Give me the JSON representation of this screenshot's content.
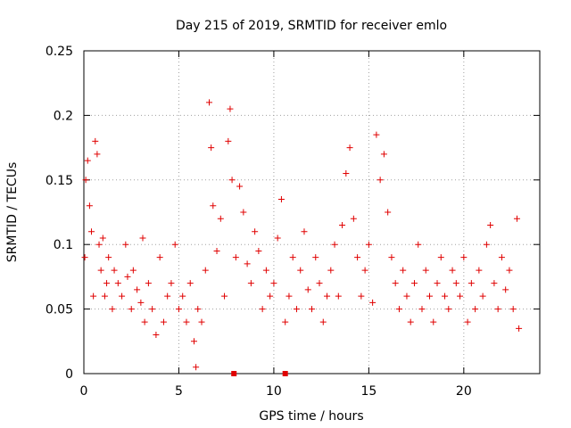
{
  "chart_data": {
    "type": "scatter",
    "title": "Day 215 of 2019, SRMTID for receiver emlo",
    "xlabel": "GPS time / hours",
    "ylabel": "SRMTID / TECUs",
    "xlim": [
      0,
      24
    ],
    "ylim": [
      0,
      0.25
    ],
    "xticks": [
      0,
      5,
      10,
      15,
      20
    ],
    "xtick_labels": [
      "0",
      "5",
      "10",
      "15",
      "20"
    ],
    "yticks": [
      0,
      0.05,
      0.1,
      0.15,
      0.2,
      0.25
    ],
    "ytick_labels": [
      "0",
      "0.05",
      "0.1",
      "0.15",
      "0.2",
      "0.25"
    ],
    "grid": true,
    "marker": "plus",
    "color": "#e00000",
    "series": [
      {
        "name": "SRMTID",
        "points": [
          [
            0.05,
            0.09
          ],
          [
            0.1,
            0.15
          ],
          [
            0.2,
            0.165
          ],
          [
            0.3,
            0.13
          ],
          [
            0.4,
            0.11
          ],
          [
            0.5,
            0.06
          ],
          [
            0.6,
            0.18
          ],
          [
            0.7,
            0.17
          ],
          [
            0.8,
            0.1
          ],
          [
            0.9,
            0.08
          ],
          [
            1.0,
            0.105
          ],
          [
            1.1,
            0.06
          ],
          [
            1.2,
            0.07
          ],
          [
            1.3,
            0.09
          ],
          [
            1.5,
            0.05
          ],
          [
            1.6,
            0.08
          ],
          [
            1.8,
            0.07
          ],
          [
            2.0,
            0.06
          ],
          [
            2.2,
            0.1
          ],
          [
            2.3,
            0.075
          ],
          [
            2.5,
            0.05
          ],
          [
            2.6,
            0.08
          ],
          [
            2.8,
            0.065
          ],
          [
            3.0,
            0.055
          ],
          [
            3.1,
            0.105
          ],
          [
            3.2,
            0.04
          ],
          [
            3.4,
            0.07
          ],
          [
            3.6,
            0.05
          ],
          [
            3.8,
            0.03
          ],
          [
            4.0,
            0.09
          ],
          [
            4.2,
            0.04
          ],
          [
            4.4,
            0.06
          ],
          [
            4.6,
            0.07
          ],
          [
            4.8,
            0.1
          ],
          [
            5.0,
            0.05
          ],
          [
            5.2,
            0.06
          ],
          [
            5.4,
            0.04
          ],
          [
            5.6,
            0.07
          ],
          [
            5.8,
            0.025
          ],
          [
            5.9,
            0.005
          ],
          [
            6.0,
            0.05
          ],
          [
            6.2,
            0.04
          ],
          [
            6.4,
            0.08
          ],
          [
            6.6,
            0.21
          ],
          [
            6.7,
            0.175
          ],
          [
            6.8,
            0.13
          ],
          [
            7.0,
            0.095
          ],
          [
            7.2,
            0.12
          ],
          [
            7.4,
            0.06
          ],
          [
            7.6,
            0.18
          ],
          [
            7.7,
            0.205
          ],
          [
            7.8,
            0.15
          ],
          [
            8.0,
            0.09
          ],
          [
            8.2,
            0.145
          ],
          [
            8.4,
            0.125
          ],
          [
            8.6,
            0.085
          ],
          [
            8.8,
            0.07
          ],
          [
            9.0,
            0.11
          ],
          [
            9.2,
            0.095
          ],
          [
            9.4,
            0.05
          ],
          [
            9.6,
            0.08
          ],
          [
            9.8,
            0.06
          ],
          [
            10.0,
            0.07
          ],
          [
            10.2,
            0.105
          ],
          [
            10.4,
            0.135
          ],
          [
            10.6,
            0.04
          ],
          [
            10.8,
            0.06
          ],
          [
            11.0,
            0.09
          ],
          [
            11.2,
            0.05
          ],
          [
            11.4,
            0.08
          ],
          [
            11.6,
            0.11
          ],
          [
            11.8,
            0.065
          ],
          [
            12.0,
            0.05
          ],
          [
            12.2,
            0.09
          ],
          [
            12.4,
            0.07
          ],
          [
            12.6,
            0.04
          ],
          [
            12.8,
            0.06
          ],
          [
            13.0,
            0.08
          ],
          [
            13.2,
            0.1
          ],
          [
            13.4,
            0.06
          ],
          [
            13.6,
            0.115
          ],
          [
            13.8,
            0.155
          ],
          [
            14.0,
            0.175
          ],
          [
            14.2,
            0.12
          ],
          [
            14.4,
            0.09
          ],
          [
            14.6,
            0.06
          ],
          [
            14.8,
            0.08
          ],
          [
            15.0,
            0.1
          ],
          [
            15.2,
            0.055
          ],
          [
            15.4,
            0.185
          ],
          [
            15.6,
            0.15
          ],
          [
            15.8,
            0.17
          ],
          [
            16.0,
            0.125
          ],
          [
            16.2,
            0.09
          ],
          [
            16.4,
            0.07
          ],
          [
            16.6,
            0.05
          ],
          [
            16.8,
            0.08
          ],
          [
            17.0,
            0.06
          ],
          [
            17.2,
            0.04
          ],
          [
            17.4,
            0.07
          ],
          [
            17.6,
            0.1
          ],
          [
            17.8,
            0.05
          ],
          [
            18.0,
            0.08
          ],
          [
            18.2,
            0.06
          ],
          [
            18.4,
            0.04
          ],
          [
            18.6,
            0.07
          ],
          [
            18.8,
            0.09
          ],
          [
            19.0,
            0.06
          ],
          [
            19.2,
            0.05
          ],
          [
            19.4,
            0.08
          ],
          [
            19.6,
            0.07
          ],
          [
            19.8,
            0.06
          ],
          [
            20.0,
            0.09
          ],
          [
            20.2,
            0.04
          ],
          [
            20.4,
            0.07
          ],
          [
            20.6,
            0.05
          ],
          [
            20.8,
            0.08
          ],
          [
            21.0,
            0.06
          ],
          [
            21.2,
            0.1
          ],
          [
            21.4,
            0.115
          ],
          [
            21.6,
            0.07
          ],
          [
            21.8,
            0.05
          ],
          [
            22.0,
            0.09
          ],
          [
            22.2,
            0.065
          ],
          [
            22.4,
            0.08
          ],
          [
            22.6,
            0.05
          ],
          [
            22.8,
            0.12
          ],
          [
            22.9,
            0.035
          ]
        ]
      }
    ],
    "zero_markers_x": [
      7.9,
      10.6
    ]
  }
}
